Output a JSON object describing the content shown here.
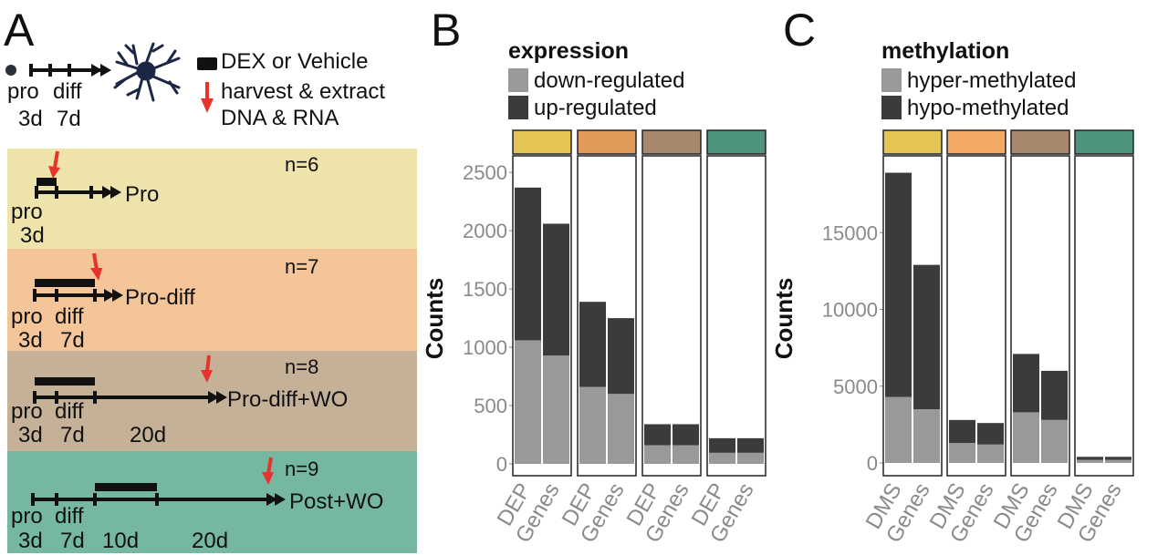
{
  "panel_a": {
    "letter": "A",
    "legend": {
      "dex_label": "DEX or Vehicle",
      "harvest_label_1": "harvest & extract",
      "harvest_label_2": "DNA & RNA"
    },
    "top_timeline": {
      "label_pro": "pro",
      "label_diff": "diff",
      "label_3d": "3d",
      "label_7d": "7d"
    },
    "bands": [
      {
        "n": "n=6",
        "name": "Pro",
        "color": "#efe3ac",
        "labels": [
          "pro",
          "3d"
        ]
      },
      {
        "n": "n=7",
        "name": "Pro-diff",
        "color": "#f3c599",
        "labels": [
          "pro",
          "diff",
          "3d",
          "7d"
        ]
      },
      {
        "n": "n=8",
        "name": "Pro-diff+WO",
        "color": "#c5b098",
        "labels": [
          "pro",
          "diff",
          "3d",
          "7d",
          "20d"
        ]
      },
      {
        "n": "n=9",
        "name": "Post+WO",
        "color": "#75b7a0",
        "labels": [
          "pro",
          "diff",
          "3d",
          "7d",
          "10d",
          "20d"
        ]
      }
    ],
    "colors": {
      "timeline": "#111111",
      "arrow": "#e8322b",
      "neuron": "#1c2745"
    }
  },
  "chart_data": [
    {
      "panel": "B",
      "type": "bar",
      "stacked": true,
      "legend_title": "expression",
      "ylabel": "Counts",
      "ylim": [
        0,
        2650
      ],
      "yticks": [
        0,
        500,
        1000,
        1500,
        2000,
        2500
      ],
      "facet_colors": [
        "#e3c454",
        "#e09a5a",
        "#a7876b",
        "#4f947c"
      ],
      "categories": [
        "DEP",
        "Genes"
      ],
      "series": [
        {
          "name": "down-regulated",
          "color": "#999999"
        },
        {
          "name": "up-regulated",
          "color": "#3b3b3b"
        }
      ],
      "facets": [
        {
          "bars": [
            {
              "x": "DEP",
              "down": 1060,
              "up": 1310
            },
            {
              "x": "Genes",
              "down": 930,
              "up": 1130
            }
          ]
        },
        {
          "bars": [
            {
              "x": "DEP",
              "down": 660,
              "up": 730
            },
            {
              "x": "Genes",
              "down": 600,
              "up": 650
            }
          ]
        },
        {
          "bars": [
            {
              "x": "DEP",
              "down": 160,
              "up": 180
            },
            {
              "x": "Genes",
              "down": 160,
              "up": 180
            }
          ]
        },
        {
          "bars": [
            {
              "x": "DEP",
              "down": 95,
              "up": 125
            },
            {
              "x": "Genes",
              "down": 95,
              "up": 125
            }
          ]
        }
      ]
    },
    {
      "panel": "C",
      "type": "bar",
      "stacked": true,
      "legend_title": "methylation",
      "ylabel": "Counts",
      "ylim": [
        0,
        20000
      ],
      "yticks": [
        0,
        5000,
        10000,
        15000
      ],
      "facet_colors": [
        "#e3c454",
        "#f2a965",
        "#a7876b",
        "#4f947c"
      ],
      "categories": [
        "DMS",
        "Genes"
      ],
      "series": [
        {
          "name": "hyper-methylated",
          "color": "#999999"
        },
        {
          "name": "hypo-methylated",
          "color": "#3b3b3b"
        }
      ],
      "facets": [
        {
          "bars": [
            {
              "x": "DMS",
              "down": 4300,
              "up": 14600
            },
            {
              "x": "Genes",
              "down": 3500,
              "up": 9400
            }
          ]
        },
        {
          "bars": [
            {
              "x": "DMS",
              "down": 1300,
              "up": 1500
            },
            {
              "x": "Genes",
              "down": 1200,
              "up": 1400
            }
          ]
        },
        {
          "bars": [
            {
              "x": "DMS",
              "down": 3300,
              "up": 3800
            },
            {
              "x": "Genes",
              "down": 2800,
              "up": 3200
            }
          ]
        },
        {
          "bars": [
            {
              "x": "DMS",
              "down": 200,
              "up": 200
            },
            {
              "x": "Genes",
              "down": 200,
              "up": 200
            }
          ]
        }
      ]
    }
  ]
}
